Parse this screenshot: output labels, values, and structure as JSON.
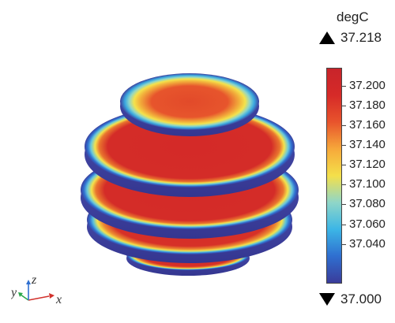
{
  "legend": {
    "unit": "degC",
    "max_value": "37.218",
    "min_value": "37.000",
    "ticks": [
      "37.200",
      "37.180",
      "37.160",
      "37.140",
      "37.120",
      "37.100",
      "37.080",
      "37.060",
      "37.040"
    ],
    "range": [
      37.0,
      37.218
    ]
  },
  "colormap": [
    "#3a3c9a",
    "#2f6fd0",
    "#3cb6e6",
    "#8fd6c8",
    "#f4e04a",
    "#f6a83a",
    "#e8542c",
    "#d62a28",
    "#c8242a"
  ],
  "axes": {
    "x": "x",
    "y": "y",
    "z": "z"
  },
  "axis_colors": {
    "x": "#d2322d",
    "y": "#2aa84a",
    "z": "#2f6fd0"
  }
}
